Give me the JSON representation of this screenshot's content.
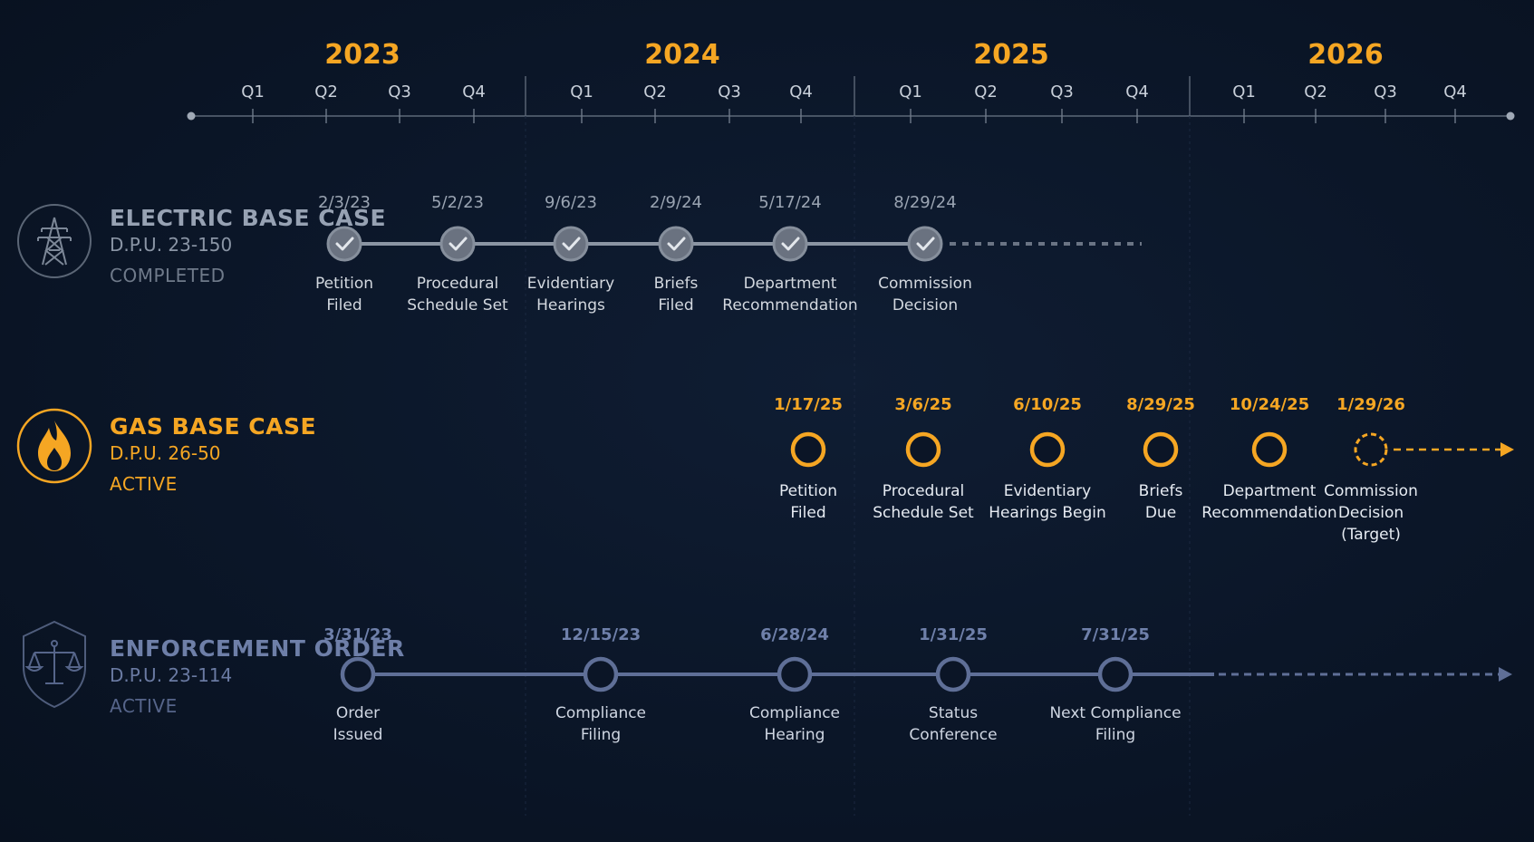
{
  "timeline": {
    "years": [
      {
        "label": "2023",
        "quarters": [
          "Q1",
          "Q2",
          "Q3",
          "Q4"
        ]
      },
      {
        "label": "2024",
        "quarters": [
          "Q1",
          "Q2",
          "Q3",
          "Q4"
        ]
      },
      {
        "label": "2025",
        "quarters": [
          "Q1",
          "Q2",
          "Q3",
          "Q4"
        ]
      },
      {
        "label": "2026",
        "quarters": [
          "Q1",
          "Q2",
          "Q3",
          "Q4"
        ]
      }
    ]
  },
  "cases": [
    {
      "id": "electric",
      "title": "ELECTRIC BASE CASE",
      "docket": "D.P.U. 23-150",
      "status": "COMPLETED",
      "icon": "transmission-tower-icon",
      "color": "#8b95a3",
      "milestones": [
        {
          "date": "2/3/23",
          "label": [
            "Petition",
            "Filed"
          ],
          "state": "done"
        },
        {
          "date": "5/2/23",
          "label": [
            "Procedural",
            "Schedule Set"
          ],
          "state": "done"
        },
        {
          "date": "9/6/23",
          "label": [
            "Evidentiary",
            "Hearings"
          ],
          "state": "done"
        },
        {
          "date": "2/9/24",
          "label": [
            "Briefs",
            "Filed"
          ],
          "state": "done"
        },
        {
          "date": "5/17/24",
          "label": [
            "Department",
            "Recommendation"
          ],
          "state": "done"
        },
        {
          "date": "8/29/24",
          "label": [
            "Commission",
            "Decision"
          ],
          "state": "done"
        }
      ]
    },
    {
      "id": "gas",
      "title": "GAS BASE CASE",
      "docket": "D.P.U. 26-50",
      "status": "ACTIVE",
      "icon": "flame-icon",
      "color": "#f5a623",
      "milestones": [
        {
          "date": "1/17/25",
          "label": [
            "Petition",
            "Filed"
          ],
          "state": "open"
        },
        {
          "date": "3/6/25",
          "label": [
            "Procedural",
            "Schedule Set"
          ],
          "state": "open"
        },
        {
          "date": "6/10/25",
          "label": [
            "Evidentiary",
            "Hearings Begin"
          ],
          "state": "open"
        },
        {
          "date": "8/29/25",
          "label": [
            "Briefs",
            "Due"
          ],
          "state": "open"
        },
        {
          "date": "10/24/25",
          "label": [
            "Department",
            "Recommendation"
          ],
          "state": "open"
        },
        {
          "date": "1/29/26",
          "label": [
            "Commission",
            "Decision",
            "(Target)"
          ],
          "state": "target"
        }
      ]
    },
    {
      "id": "enforcement",
      "title": "ENFORCEMENT ORDER",
      "docket": "D.P.U. 23-114",
      "status": "ACTIVE",
      "icon": "scales-shield-icon",
      "color": "#5f6f97",
      "milestones": [
        {
          "date": "3/31/23",
          "label": [
            "Order",
            "Issued"
          ],
          "state": "open"
        },
        {
          "date": "12/15/23",
          "label": [
            "Compliance",
            "Filing"
          ],
          "state": "open"
        },
        {
          "date": "6/28/24",
          "label": [
            "Compliance",
            "Hearing"
          ],
          "state": "open"
        },
        {
          "date": "1/31/25",
          "label": [
            "Status",
            "Conference"
          ],
          "state": "open"
        },
        {
          "date": "7/31/25",
          "label": [
            "Next Compliance",
            "Filing"
          ],
          "state": "open"
        }
      ]
    }
  ]
}
